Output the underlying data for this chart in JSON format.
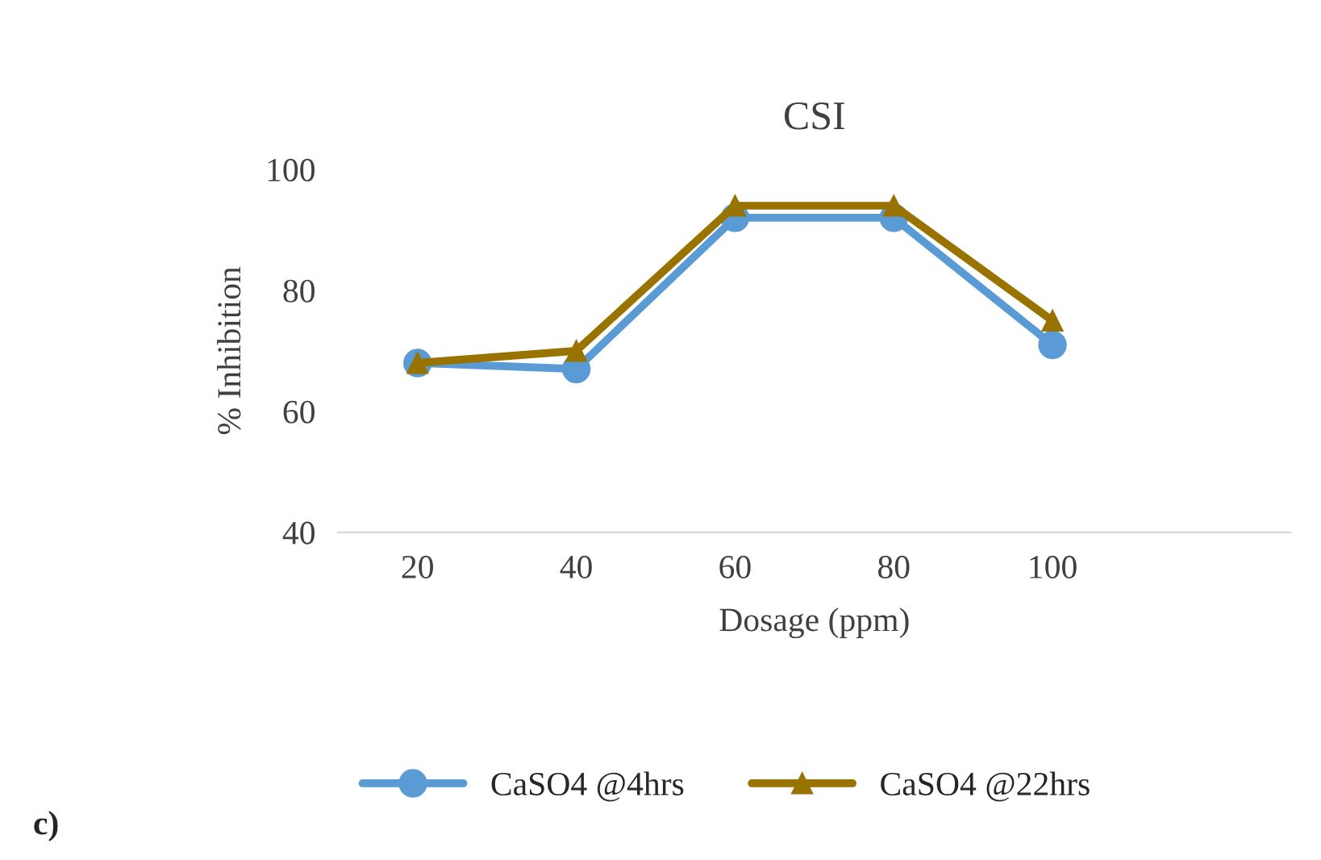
{
  "chart_data": {
    "type": "line",
    "title": "CSI",
    "xlabel": "Dosage (ppm)",
    "ylabel": "% Inhibition",
    "categories": [
      "20",
      "40",
      "60",
      "80",
      "100",
      null
    ],
    "series": [
      {
        "name": "CaSO4 @4hrs",
        "color": "#5b9bd5",
        "marker": "circle",
        "values": [
          68,
          67,
          92,
          92,
          71,
          null
        ]
      },
      {
        "name": "CaSO4 @22hrs",
        "color": "#997300",
        "marker": "triangle",
        "values": [
          68,
          70,
          94,
          94,
          75,
          null
        ]
      }
    ],
    "ylim": [
      40,
      100
    ],
    "yticks": [
      40,
      60,
      80,
      100
    ],
    "grid": false,
    "legend": "bottom",
    "annotations": [
      "c)"
    ]
  }
}
